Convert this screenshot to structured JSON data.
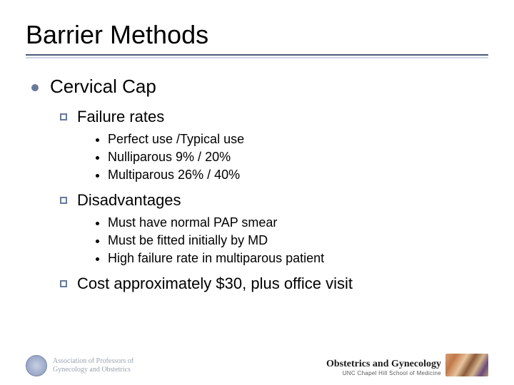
{
  "title": "Barrier Methods",
  "colors": {
    "rule_top": "#4a5a78",
    "rule_bottom": "#cfd6e4",
    "bullet_l1": "#677a9b",
    "bullet_l2_border": "#677a9b",
    "bullet_l3": "#000000",
    "text": "#000000",
    "footer_grey": "#9aa2b0"
  },
  "font_sizes": {
    "title": 36,
    "l1": 26,
    "l2": 22,
    "l3": 18
  },
  "l1_items": [
    {
      "label": "Cervical Cap",
      "children": [
        {
          "label": "Failure rates",
          "children": [
            {
              "label": "Perfect use /Typical use"
            },
            {
              "label": "Nulliparous 9% / 20%"
            },
            {
              "label": "Multiparous 26% / 40%"
            }
          ]
        },
        {
          "label": "Disadvantages",
          "children": [
            {
              "label": "Must have normal PAP smear"
            },
            {
              "label": "Must be fitted initially by MD"
            },
            {
              "label": "High failure rate in multiparous patient"
            }
          ]
        },
        {
          "label": "Cost approximately $30, plus office visit",
          "children": []
        }
      ]
    }
  ],
  "footer": {
    "left": {
      "line1": "Association of Professors of",
      "line2": "Gynecology and Obstetrics"
    },
    "right": {
      "title": "Obstetrics and Gynecology",
      "subtitle": "UNC Chapel Hill School of Medicine"
    }
  }
}
